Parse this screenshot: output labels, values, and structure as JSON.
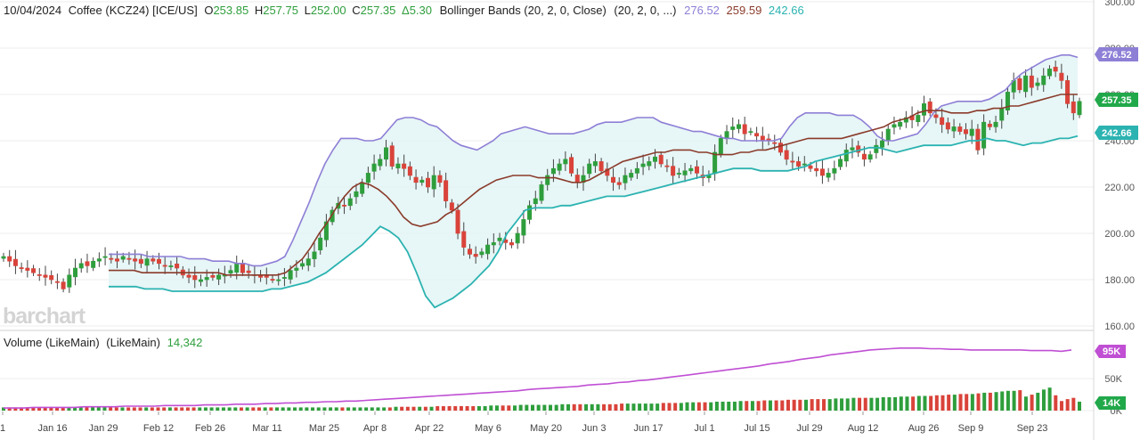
{
  "header": {
    "date": "10/04/2024",
    "symbol": "Coffee (KCZ24) [ICE/US]",
    "open_label": "O",
    "open": "253.85",
    "high_label": "H",
    "high": "257.75",
    "low_label": "L",
    "low": "252.00",
    "close_label": "C",
    "close": "257.35",
    "change": "Δ5.30",
    "study_name": "Bollinger Bands (20, 2, 0, Close)",
    "study_params": "(20, 2, 0, ...)",
    "bb_upper": "276.52",
    "bb_middle": "259.59",
    "bb_lower": "242.66"
  },
  "volume_header": {
    "label": "Volume (LikeMain)",
    "params": "(LikeMain)",
    "value": "14,342"
  },
  "brand": "barchart",
  "badges": {
    "upper": "276.52",
    "last": "257.35",
    "lower": "242.66",
    "vol_ma": "95K",
    "vol_last": "14K"
  },
  "colors": {
    "up": "#2e9e3c",
    "down": "#d9433a",
    "band": "#8e7fd6",
    "lower_band": "#2bb3b1",
    "middle": "#8a3b2b",
    "fill": "#e3f4f4",
    "vol_ma": "#c04fd4",
    "close_badge": "#21a84a"
  },
  "chart_data": [
    {
      "type": "candlestick",
      "title": "Coffee (KCZ24) [ICE/US]",
      "ylim": [
        160,
        300
      ],
      "y_ticks": [
        "160.00",
        "180.00",
        "200.00",
        "220.00",
        "240.00",
        "260.00",
        "280.00",
        "300.00"
      ],
      "x_ticks": [
        "1",
        "Jan 16",
        "Jan 29",
        "Feb 12",
        "Feb 26",
        "Mar 11",
        "Mar 25",
        "Apr 8",
        "Apr 22",
        "May 6",
        "May 20",
        "Jun 3",
        "Jun 17",
        "Jul 1",
        "Jul 15",
        "Jul 29",
        "Aug 12",
        "Aug 26",
        "Sep 9",
        "Sep 23"
      ],
      "closes": [
        190,
        188,
        186,
        185,
        184,
        183,
        182,
        181,
        180,
        179,
        176,
        182,
        185,
        187,
        186,
        188,
        189,
        190,
        189,
        188,
        190,
        189,
        188,
        187,
        189,
        188,
        187,
        186,
        186,
        185,
        182,
        181,
        180,
        180,
        181,
        181,
        182,
        182,
        184,
        187,
        183,
        183,
        182,
        181,
        181,
        180,
        180,
        181,
        184,
        185,
        187,
        189,
        192,
        198,
        205,
        210,
        213,
        212,
        215,
        218,
        222,
        226,
        230,
        232,
        237,
        229,
        230,
        228,
        225,
        222,
        223,
        220,
        225,
        222,
        214,
        210,
        200,
        194,
        191,
        190,
        192,
        195,
        196,
        198,
        196,
        195,
        200,
        206,
        212,
        215,
        221,
        225,
        228,
        230,
        232,
        226,
        222,
        225,
        230,
        231,
        227,
        225,
        222,
        221,
        225,
        226,
        228,
        230,
        231,
        233,
        230,
        229,
        225,
        226,
        227,
        228,
        226,
        224,
        225,
        235,
        241,
        244,
        246,
        247,
        243,
        244,
        242,
        240,
        240,
        239,
        235,
        232,
        231,
        229,
        230,
        228,
        227,
        225,
        226,
        228,
        232,
        236,
        237,
        235,
        232,
        234,
        238,
        240,
        245,
        247,
        248,
        250,
        249,
        251,
        256,
        252,
        250,
        247,
        245,
        246,
        244,
        243,
        245,
        236,
        248,
        246,
        248,
        254,
        261,
        266,
        262,
        268,
        263,
        265,
        268,
        271,
        270,
        266,
        256,
        252,
        257
      ],
      "bb_upper": [
        191,
        191,
        191,
        191,
        191,
        190,
        190,
        190,
        190,
        190,
        189,
        189,
        189,
        188,
        188,
        188,
        187,
        187,
        186,
        186,
        187,
        188,
        190,
        197,
        205,
        213,
        222,
        230,
        236,
        241,
        241,
        241,
        240,
        240,
        241,
        245,
        249,
        250,
        250,
        249,
        247,
        246,
        243,
        240,
        238,
        237,
        236,
        238,
        240,
        243,
        244,
        245,
        246,
        245,
        244,
        243,
        243,
        243,
        243,
        244,
        245,
        247,
        248,
        248,
        248,
        249,
        250,
        250,
        250,
        248,
        247,
        246,
        245,
        244,
        244,
        243,
        242,
        241,
        241,
        240,
        240,
        240,
        240,
        240,
        241,
        246,
        250,
        252,
        252,
        252,
        252,
        251,
        251,
        251,
        249,
        246,
        242,
        240,
        240,
        241,
        242,
        243,
        247,
        252,
        255,
        256,
        257,
        257,
        257,
        257,
        258,
        260,
        262,
        266,
        269,
        271,
        273,
        275,
        276,
        277,
        277,
        276
      ],
      "bb_middle": [
        184,
        184,
        184,
        184,
        183,
        183,
        183,
        183,
        183,
        183,
        183,
        183,
        183,
        183,
        182,
        182,
        182,
        182,
        182,
        182,
        182,
        183,
        186,
        189,
        194,
        200,
        205,
        211,
        216,
        220,
        222,
        221,
        219,
        216,
        212,
        207,
        204,
        203,
        204,
        205,
        208,
        210,
        213,
        216,
        219,
        221,
        223,
        224,
        225,
        225,
        225,
        224,
        224,
        224,
        223,
        222,
        222,
        223,
        225,
        227,
        229,
        231,
        232,
        233,
        234,
        235,
        235,
        236,
        236,
        236,
        235,
        235,
        234,
        234,
        234,
        235,
        235,
        236,
        236,
        237,
        238,
        239,
        240,
        241,
        241,
        241,
        241,
        241,
        242,
        243,
        244,
        245,
        246,
        248,
        249,
        250,
        252,
        253,
        253,
        253,
        252,
        252,
        252,
        253,
        253,
        254,
        254,
        255,
        255,
        256,
        257,
        258,
        259,
        260,
        260,
        260
      ],
      "bb_lower": [
        177,
        177,
        177,
        177,
        176,
        176,
        176,
        175,
        175,
        175,
        175,
        175,
        175,
        175,
        175,
        175,
        175,
        175,
        176,
        176,
        177,
        178,
        179,
        181,
        183,
        186,
        189,
        192,
        195,
        199,
        203,
        201,
        198,
        192,
        183,
        173,
        168,
        170,
        172,
        175,
        178,
        182,
        186,
        192,
        200,
        205,
        210,
        211,
        211,
        211,
        212,
        212,
        213,
        214,
        215,
        216,
        216,
        216,
        217,
        218,
        219,
        220,
        221,
        222,
        223,
        224,
        225,
        226,
        227,
        228,
        228,
        228,
        227,
        227,
        227,
        227,
        228,
        229,
        231,
        232,
        233,
        234,
        235,
        236,
        237,
        237,
        236,
        235,
        236,
        237,
        238,
        238,
        238,
        238,
        239,
        240,
        240,
        241,
        240,
        240,
        239,
        238,
        239,
        239,
        240,
        241,
        241,
        242
      ]
    },
    {
      "type": "bar",
      "title": "Volume (LikeMain)",
      "ylim": [
        0,
        120000
      ],
      "y_ticks": [
        "0K",
        "50K"
      ],
      "last_value": 14342,
      "moving_average_last": 95000,
      "volume": [
        5000,
        5000,
        5000,
        5000,
        5000,
        5000,
        5000,
        5000,
        5000,
        5000,
        5000,
        5000,
        5000,
        5000,
        5000,
        5000,
        5000,
        5000,
        5000,
        5000,
        5000,
        5000,
        5000,
        5000,
        5000,
        5000,
        5000,
        5000,
        5000,
        5000,
        5000,
        5000,
        5000,
        5000,
        5000,
        5000,
        5000,
        5000,
        5000,
        5000,
        5000,
        5000,
        5000,
        5000,
        5000,
        5000,
        5000,
        5000,
        5000,
        5000,
        5000,
        5000,
        5000,
        5000,
        5000,
        5000,
        5000,
        5000,
        5000,
        5000,
        5000,
        5000,
        5000,
        5000,
        5000,
        5000,
        6000,
        6000,
        6000,
        6000,
        6000,
        6000,
        6000,
        7000,
        7000,
        7000,
        7000,
        7000,
        7000,
        7000,
        7000,
        7000,
        8000,
        8000,
        8000,
        8000,
        8000,
        9000,
        9000,
        9000,
        9000,
        9000,
        9000,
        9000,
        10000,
        10000,
        10000,
        10000,
        10000,
        10000,
        10000,
        10000,
        10000,
        10000,
        11000,
        11000,
        11000,
        11000,
        11000,
        11000,
        11000,
        12000,
        12000,
        12000,
        12000,
        13000,
        13000,
        13000,
        13000,
        13000,
        14000,
        14000,
        14000,
        14000,
        15000,
        15000,
        15000,
        15000,
        16000,
        16000,
        16000,
        16000,
        17000,
        17000,
        17000,
        17000,
        18000,
        18000,
        18000,
        18000,
        19000,
        19000,
        19000,
        20000,
        20000,
        20000,
        20000,
        20000,
        21000,
        21000,
        21000,
        22000,
        22000,
        22000,
        23000,
        23000,
        23000,
        24000,
        24000,
        25000,
        25000,
        26000,
        26000,
        26000,
        27000,
        28000,
        28000,
        29000,
        30000,
        31000,
        31000,
        32000,
        22000,
        25000,
        28000,
        33000,
        36000,
        24000,
        15000,
        18000,
        20000,
        14000
      ],
      "moving_average": [
        4000,
        4000,
        4000,
        5000,
        5000,
        5000,
        5000,
        5000,
        6000,
        6000,
        6000,
        6000,
        7000,
        7000,
        7000,
        7000,
        8000,
        8000,
        8000,
        8000,
        9000,
        9000,
        9000,
        10000,
        10000,
        10000,
        11000,
        11000,
        12000,
        12000,
        13000,
        13000,
        14000,
        14000,
        15000,
        15000,
        16000,
        17000,
        18000,
        19000,
        20000,
        21000,
        22000,
        23000,
        24000,
        25000,
        26000,
        27000,
        28000,
        29000,
        30000,
        31000,
        33000,
        34000,
        35000,
        36000,
        37000,
        38000,
        40000,
        41000,
        42000,
        44000,
        45000,
        47000,
        48000,
        50000,
        52000,
        54000,
        56000,
        58000,
        60000,
        62000,
        64000,
        66000,
        68000,
        70000,
        73000,
        75000,
        77000,
        80000,
        82000,
        84000,
        87000,
        89000,
        91000,
        93000,
        95000,
        96000,
        97000,
        98000,
        98000,
        98000,
        97000,
        97000,
        96000,
        96000,
        95000,
        95000,
        95000,
        95000,
        95000,
        95000,
        94000,
        94000,
        94000,
        93000,
        95000
      ]
    }
  ]
}
